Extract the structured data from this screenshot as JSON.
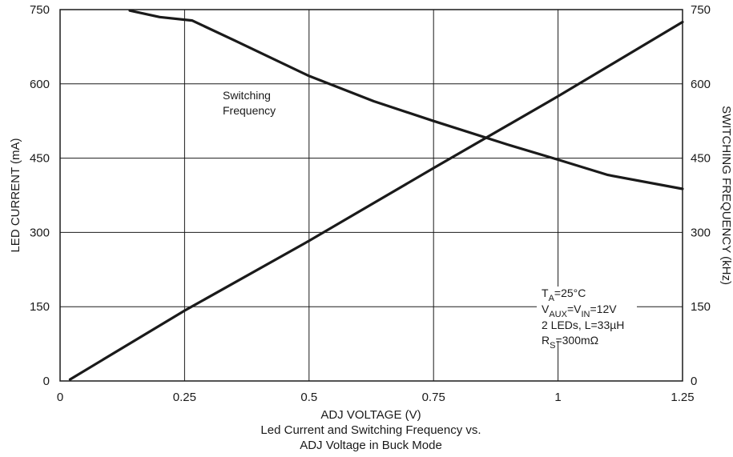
{
  "chart_data": {
    "type": "line",
    "caption": [
      "ADJ VOLTAGE (V)",
      "Led Current and Switching Frequency vs.",
      "ADJ Voltage in Buck Mode"
    ],
    "xlabel": "ADJ VOLTAGE (V)",
    "ylabel_left": "LED CURRENT (mA)",
    "ylabel_right": "SWITCHING FREQUENCY (kHz)",
    "xlim": [
      0,
      1.25
    ],
    "ylim_left": [
      0,
      750
    ],
    "ylim_right": [
      0,
      750
    ],
    "x_ticks": [
      "0",
      "0.25",
      "0.5",
      "0.75",
      "1",
      "1.25"
    ],
    "y_ticks_left": [
      "0",
      "150",
      "300",
      "450",
      "600",
      "750"
    ],
    "y_ticks_right": [
      "0",
      "150",
      "300",
      "450",
      "600",
      "750"
    ],
    "grid": true,
    "series": [
      {
        "axis": "left",
        "x": [
          0.02,
          0.25,
          0.5,
          0.75,
          1.0,
          1.25
        ],
        "y": [
          3,
          142,
          283,
          430,
          575,
          725
        ]
      },
      {
        "name": "Switching Frequency",
        "axis": "right",
        "x": [
          0.14,
          0.2,
          0.265,
          0.35,
          0.5,
          0.63,
          0.75,
          0.9,
          1.0,
          1.1,
          1.25
        ],
        "y": [
          748,
          735,
          728,
          688,
          616,
          565,
          525,
          477,
          447,
          416,
          388
        ]
      }
    ],
    "annotation": {
      "ta_base": "T",
      "ta_sub": "A",
      "ta_rest": "=25°C",
      "v_base1": "V",
      "v_sub1": "AUX",
      "v_mid": "=V",
      "v_sub2": "IN",
      "v_rest": "=12V",
      "leds": "2 LEDs, L=33µH",
      "rs_base": "R",
      "rs_sub": "S",
      "rs_rest": "=300mΩ"
    },
    "series_label_lines": [
      "Switching",
      "Frequency"
    ]
  }
}
